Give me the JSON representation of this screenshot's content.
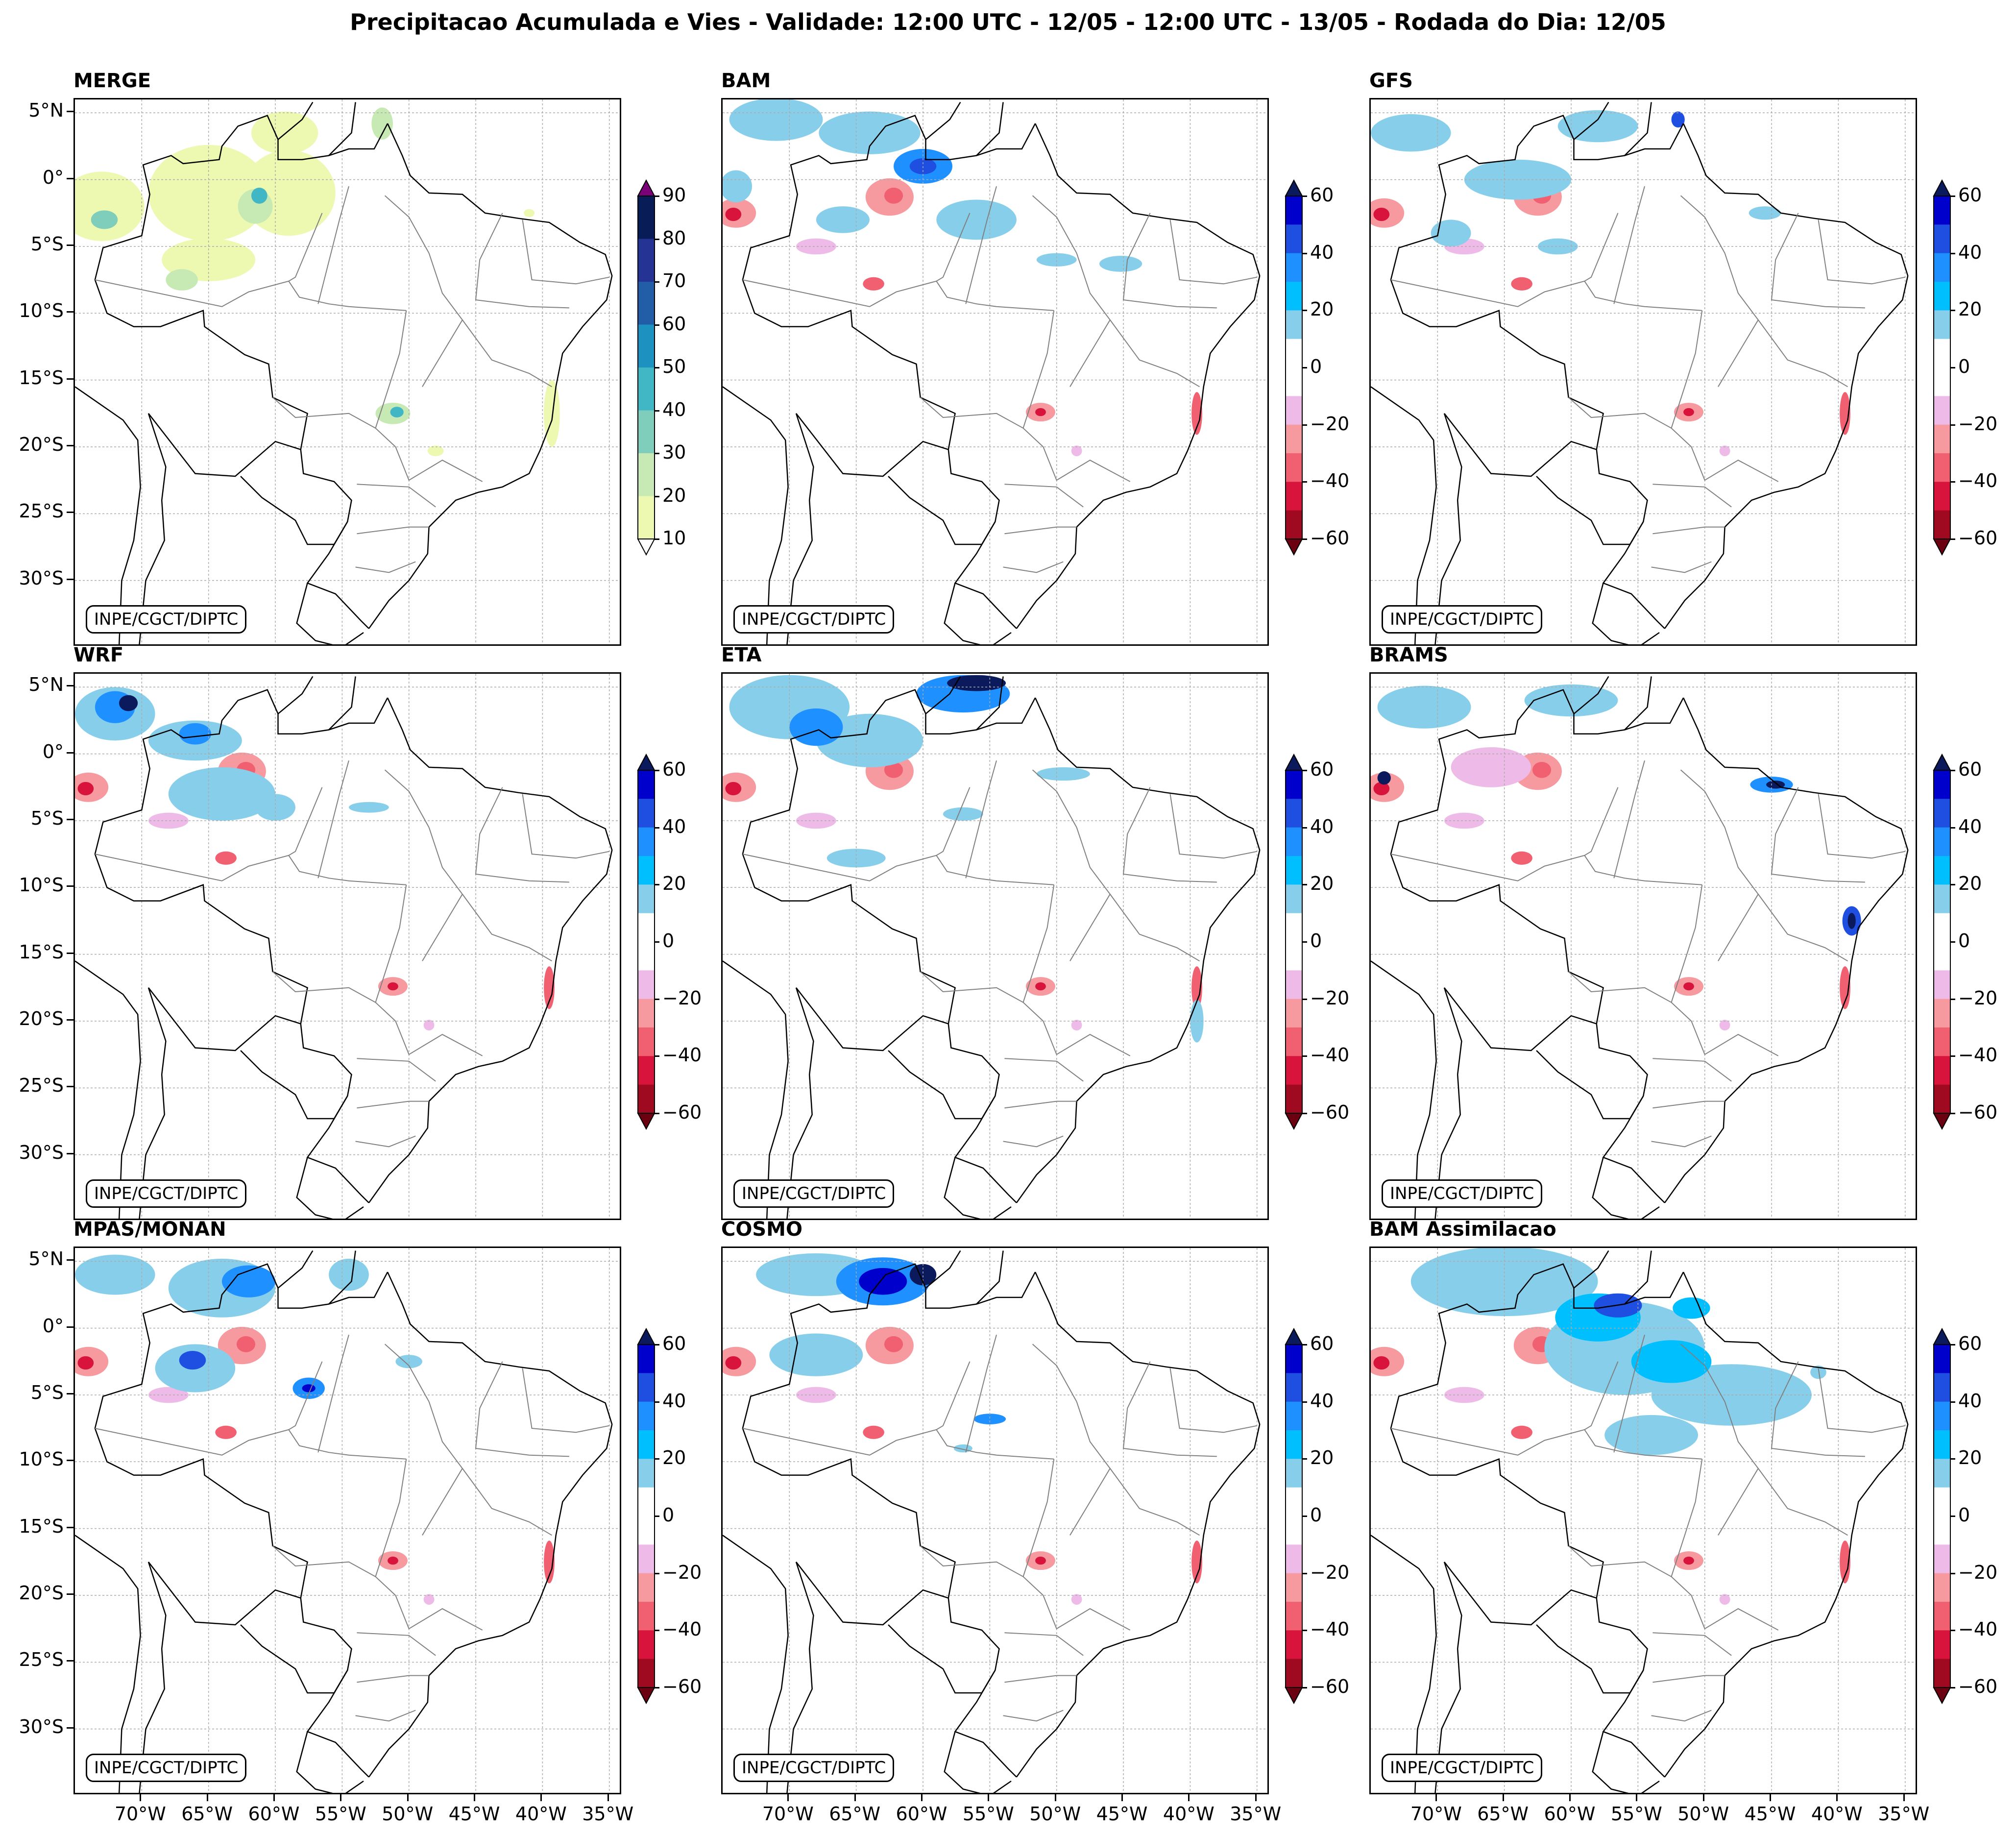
{
  "title": "Precipitacao Acumulada e Vies - Validade: 12:00 UTC - 12/05 - 12:00 UTC - 13/05 - Rodada do Dia: 12/05",
  "credit": "INPE/CGCT/DIPTC",
  "lat_labels": [
    "5°N",
    "0°",
    "5°S",
    "10°S",
    "15°S",
    "20°S",
    "25°S",
    "30°S"
  ],
  "lon_labels": [
    "70°W",
    "65°W",
    "60°W",
    "55°W",
    "50°W",
    "45°W",
    "40°W",
    "35°W"
  ],
  "panels": [
    {
      "name": "MERGE",
      "scale": "precip"
    },
    {
      "name": "BAM",
      "scale": "bias"
    },
    {
      "name": "GFS",
      "scale": "bias"
    },
    {
      "name": "WRF",
      "scale": "bias"
    },
    {
      "name": "ETA",
      "scale": "bias"
    },
    {
      "name": "BRAMS",
      "scale": "bias"
    },
    {
      "name": "MPAS/MONAN",
      "scale": "bias"
    },
    {
      "name": "COSMO",
      "scale": "bias"
    },
    {
      "name": "BAM Assimilacao",
      "scale": "bias"
    }
  ],
  "precip_colorbar": {
    "labels": [
      "90",
      "80",
      "70",
      "60",
      "50",
      "40",
      "30",
      "20",
      "10"
    ],
    "colors": [
      "#081d58",
      "#253494",
      "#225ea8",
      "#1d91c0",
      "#41b6c4",
      "#7fcdbb",
      "#c7e9b4",
      "#edf8b1"
    ],
    "extend_top": "#7a0177",
    "extend_bottom": "#ffffff"
  },
  "bias_colorbar": {
    "labels": [
      "60",
      "40",
      "20",
      "0",
      "−20",
      "−40",
      "−60"
    ],
    "colors": [
      "#0000cc",
      "#1e4fe0",
      "#1e90ff",
      "#00bfff",
      "#87ceeb",
      "#ffffff",
      "#ffffff",
      "#eebbe8",
      "#f79aa0",
      "#f06070",
      "#d9143c",
      "#a00a20"
    ],
    "extend_top": "#0a1a5c",
    "extend_bottom": "#6b0010"
  }
}
